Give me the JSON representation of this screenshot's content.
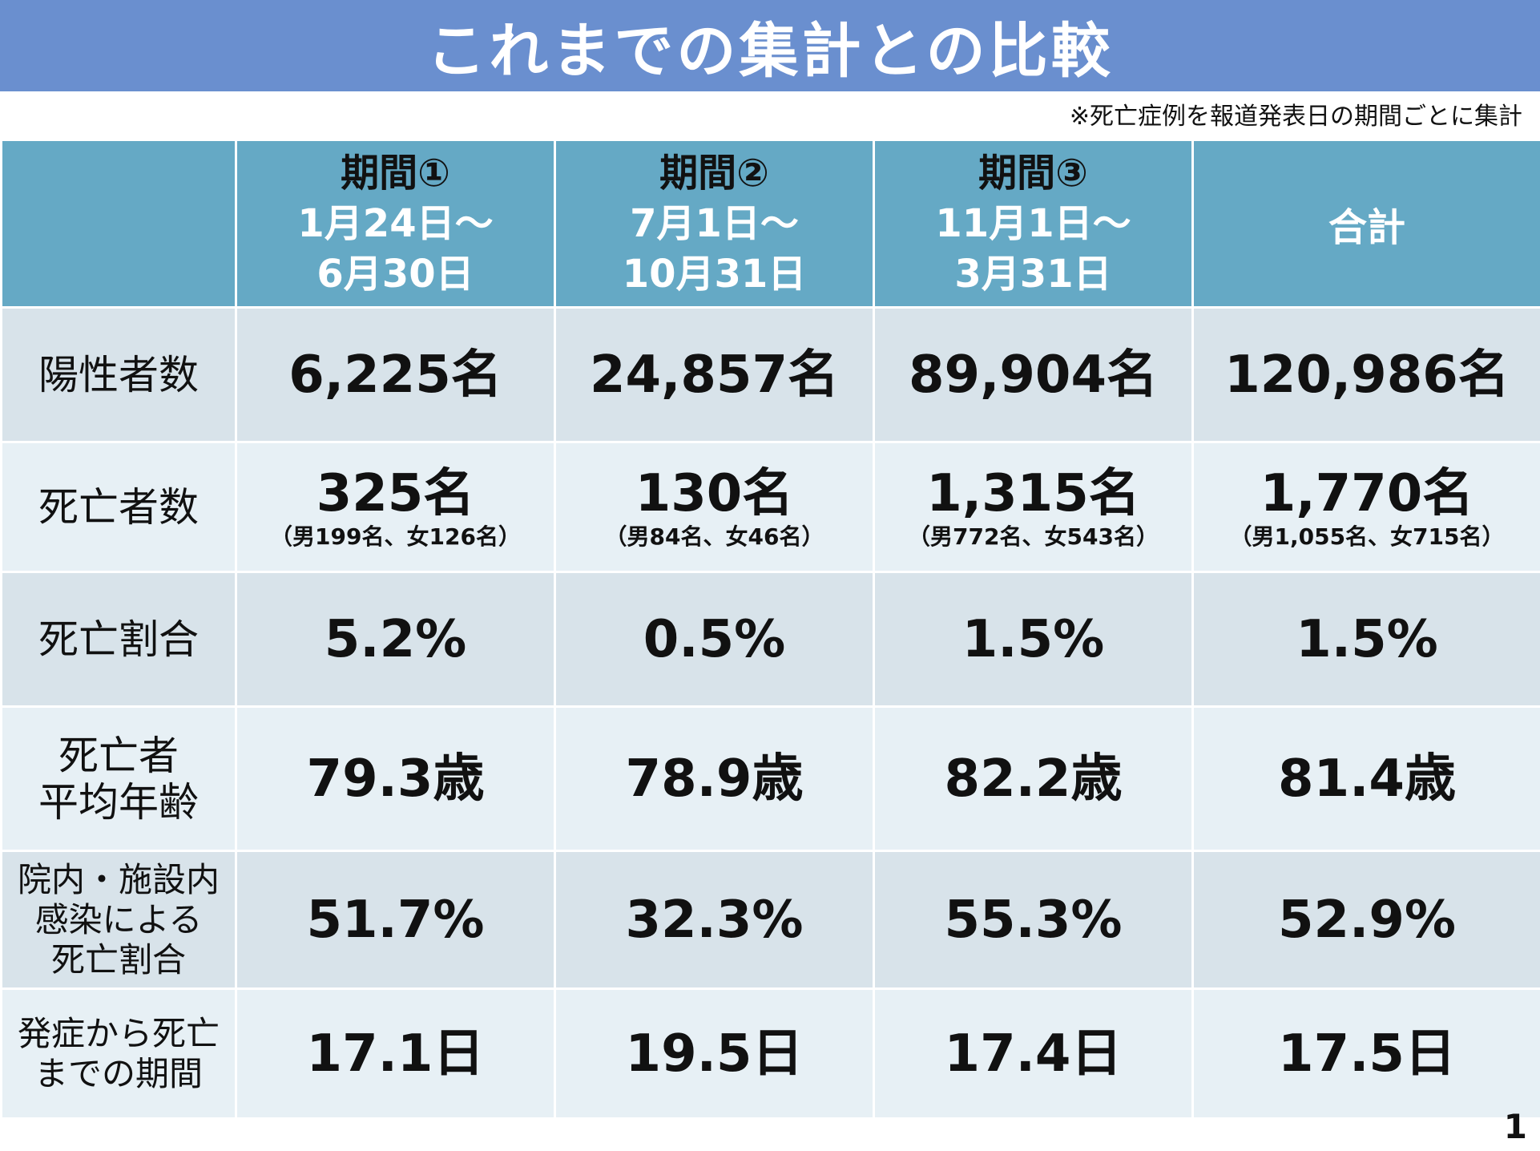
{
  "title": "これまでの集計との比較",
  "note": "※死亡症例を報道発表日の期間ごとに集計",
  "columns": [
    {
      "name": "期間①",
      "date_start": "1月24日～",
      "date_end": "6月30日"
    },
    {
      "name": "期間②",
      "date_start": "7月1日～",
      "date_end": "10月31日"
    },
    {
      "name": "期間③",
      "date_start": "11月1日～",
      "date_end": "3月31日"
    }
  ],
  "total_header": "合計",
  "rows": [
    {
      "label": "陽性者数",
      "values": [
        "6,225名",
        "24,857名",
        "89,904名",
        "120,986名"
      ]
    },
    {
      "label": "死亡者数",
      "values": [
        "325名",
        "130名",
        "1,315名",
        "1,770名"
      ],
      "subs": [
        "（男199名、女126名）",
        "（男84名、女46名）",
        "（男772名、女543名）",
        "（男1,055名、女715名）"
      ]
    },
    {
      "label": "死亡割合",
      "values": [
        "5.2%",
        "0.5%",
        "1.5%",
        "1.5%"
      ]
    },
    {
      "label_line1": "死亡者",
      "label_line2": "平均年齢",
      "values": [
        "79.3歳",
        "78.9歳",
        "82.2歳",
        "81.4歳"
      ]
    },
    {
      "label_line1": "院内・施設内",
      "label_line2": "感染による",
      "label_line3": "死亡割合",
      "values": [
        "51.7%",
        "32.3%",
        "55.3%",
        "52.9%"
      ]
    },
    {
      "label_line1": "発症から死亡",
      "label_line2": "までの期間",
      "values": [
        "17.1日",
        "19.5日",
        "17.4日",
        "17.5日"
      ]
    }
  ],
  "page_number": "1",
  "colors": {
    "title_bar": "#6a8fcf",
    "header": "#65a9c5",
    "row_dark": "#d8e3ea",
    "row_light": "#e7f0f5"
  }
}
